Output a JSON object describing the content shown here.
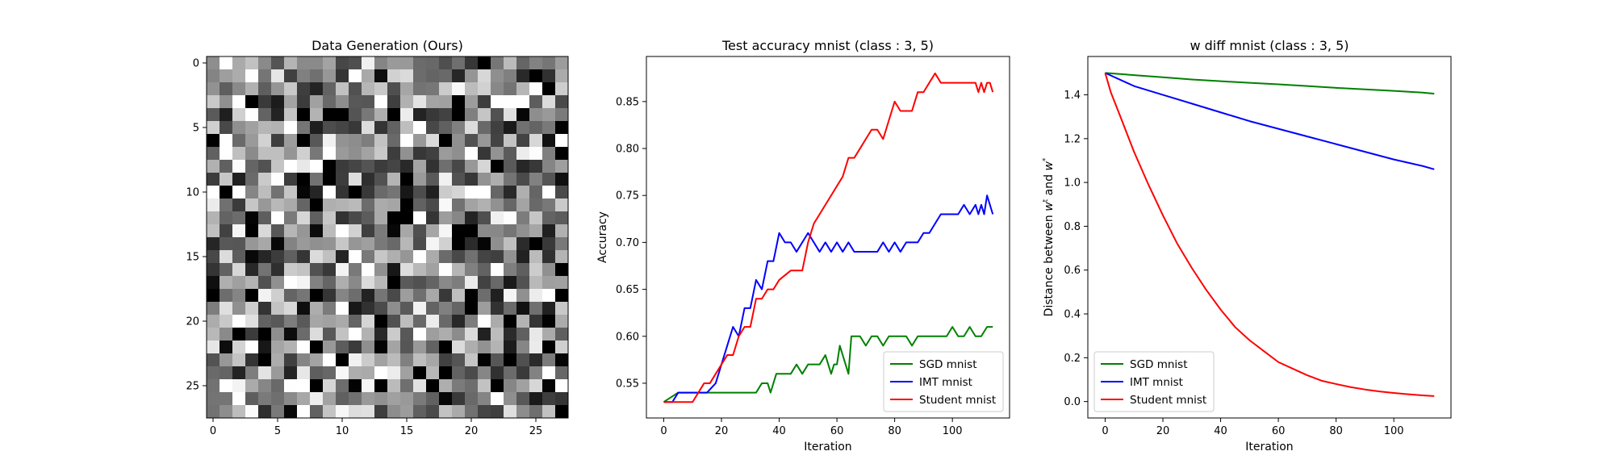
{
  "chart_data": [
    {
      "type": "heatmap",
      "title": "Data Generation (Ours)",
      "xlabel": "",
      "ylabel": "",
      "rows": 28,
      "cols": 28,
      "xticks": [
        "0",
        "5",
        "10",
        "15",
        "20",
        "25"
      ],
      "yticks": [
        "0",
        "5",
        "10",
        "15",
        "20",
        "25"
      ],
      "colormap": "grayscale",
      "value_range": [
        0,
        1
      ],
      "grid": false
    },
    {
      "type": "line",
      "title": "Test accuracy mnist (class : 3, 5)",
      "xlabel": "Iteration",
      "ylabel": "Accuracy",
      "xlim": [
        -6,
        119.8
      ],
      "ylim": [
        0.513,
        0.898
      ],
      "xticks": [
        "0",
        "20",
        "40",
        "60",
        "80",
        "100"
      ],
      "yticks": [
        "0.55",
        "0.60",
        "0.65",
        "0.70",
        "0.75",
        "0.80",
        "0.85"
      ],
      "legend": "lower-right",
      "series": [
        {
          "name": "SGD mnist",
          "color": "#008000",
          "x": [
            0,
            5,
            10,
            15,
            20,
            25,
            30,
            32,
            34,
            36,
            37,
            38,
            39,
            40,
            42,
            44,
            46,
            48,
            50,
            52,
            54,
            56,
            58,
            59,
            60,
            61,
            62,
            64,
            65,
            66,
            68,
            70,
            72,
            74,
            76,
            78,
            80,
            82,
            84,
            86,
            88,
            90,
            92,
            94,
            96,
            98,
            100,
            102,
            104,
            106,
            108,
            110,
            112,
            113,
            114
          ],
          "y": [
            0.53,
            0.54,
            0.54,
            0.54,
            0.54,
            0.54,
            0.54,
            0.54,
            0.55,
            0.55,
            0.54,
            0.55,
            0.56,
            0.56,
            0.56,
            0.56,
            0.57,
            0.56,
            0.57,
            0.57,
            0.57,
            0.58,
            0.56,
            0.57,
            0.57,
            0.59,
            0.58,
            0.56,
            0.6,
            0.6,
            0.6,
            0.59,
            0.6,
            0.6,
            0.59,
            0.6,
            0.6,
            0.6,
            0.6,
            0.59,
            0.6,
            0.6,
            0.6,
            0.6,
            0.6,
            0.6,
            0.61,
            0.6,
            0.6,
            0.61,
            0.6,
            0.6,
            0.61,
            0.61,
            0.61
          ]
        },
        {
          "name": "IMT mnist",
          "color": "#0000ff",
          "x": [
            0,
            3,
            5,
            10,
            15,
            18,
            20,
            22,
            24,
            26,
            28,
            30,
            32,
            34,
            36,
            38,
            40,
            42,
            44,
            46,
            48,
            50,
            52,
            54,
            56,
            58,
            60,
            62,
            64,
            66,
            68,
            70,
            72,
            74,
            76,
            78,
            80,
            82,
            84,
            86,
            88,
            90,
            92,
            94,
            96,
            98,
            100,
            102,
            104,
            106,
            108,
            109,
            110,
            111,
            112,
            113,
            114
          ],
          "y": [
            0.53,
            0.53,
            0.54,
            0.54,
            0.54,
            0.55,
            0.57,
            0.59,
            0.61,
            0.6,
            0.63,
            0.63,
            0.66,
            0.65,
            0.68,
            0.68,
            0.71,
            0.7,
            0.7,
            0.69,
            0.7,
            0.71,
            0.7,
            0.69,
            0.7,
            0.69,
            0.7,
            0.69,
            0.7,
            0.69,
            0.69,
            0.69,
            0.69,
            0.69,
            0.7,
            0.69,
            0.7,
            0.69,
            0.7,
            0.7,
            0.7,
            0.71,
            0.71,
            0.72,
            0.73,
            0.73,
            0.73,
            0.73,
            0.74,
            0.73,
            0.74,
            0.73,
            0.74,
            0.73,
            0.75,
            0.74,
            0.73
          ]
        },
        {
          "name": "Student mnist",
          "color": "#ff0000",
          "x": [
            0,
            5,
            10,
            12,
            14,
            16,
            18,
            20,
            22,
            24,
            26,
            28,
            30,
            32,
            34,
            36,
            38,
            40,
            44,
            48,
            50,
            52,
            54,
            56,
            58,
            60,
            62,
            64,
            66,
            68,
            70,
            72,
            74,
            76,
            78,
            80,
            82,
            84,
            86,
            88,
            90,
            92,
            94,
            96,
            98,
            100,
            102,
            104,
            106,
            108,
            109,
            110,
            111,
            112,
            113,
            114
          ],
          "y": [
            0.53,
            0.53,
            0.53,
            0.54,
            0.55,
            0.55,
            0.56,
            0.57,
            0.58,
            0.58,
            0.6,
            0.61,
            0.61,
            0.64,
            0.64,
            0.65,
            0.65,
            0.66,
            0.67,
            0.67,
            0.7,
            0.72,
            0.73,
            0.74,
            0.75,
            0.76,
            0.77,
            0.79,
            0.79,
            0.8,
            0.81,
            0.82,
            0.82,
            0.81,
            0.83,
            0.85,
            0.84,
            0.84,
            0.84,
            0.86,
            0.86,
            0.87,
            0.88,
            0.87,
            0.87,
            0.87,
            0.87,
            0.87,
            0.87,
            0.87,
            0.86,
            0.87,
            0.86,
            0.87,
            0.87,
            0.86
          ]
        }
      ]
    },
    {
      "type": "line",
      "title": "w diff mnist (class : 3, 5)",
      "xlabel": "Iteration",
      "ylabel": "Distance between w^t and w*",
      "ylabel_parts": {
        "pre": "Distance between ",
        "w1": "w",
        "sup1": "t",
        "mid": " and ",
        "w2": "w",
        "sup2": "*"
      },
      "xlim": [
        -6,
        119.8
      ],
      "ylim": [
        -0.075,
        1.575
      ],
      "xticks": [
        "0",
        "20",
        "40",
        "60",
        "80",
        "100"
      ],
      "yticks": [
        "0.0",
        "0.2",
        "0.4",
        "0.6",
        "0.8",
        "1.0",
        "1.2",
        "1.4"
      ],
      "legend": "lower-left",
      "series": [
        {
          "name": "SGD mnist",
          "color": "#008000",
          "x": [
            0,
            10,
            20,
            30,
            40,
            50,
            60,
            70,
            80,
            90,
            100,
            110,
            114
          ],
          "y": [
            1.5,
            1.49,
            1.48,
            1.47,
            1.462,
            1.455,
            1.448,
            1.44,
            1.432,
            1.425,
            1.418,
            1.41,
            1.405
          ]
        },
        {
          "name": "IMT mnist",
          "color": "#0000ff",
          "x": [
            0,
            10,
            20,
            30,
            40,
            50,
            60,
            70,
            80,
            90,
            100,
            110,
            114
          ],
          "y": [
            1.5,
            1.44,
            1.4,
            1.36,
            1.32,
            1.28,
            1.245,
            1.21,
            1.175,
            1.14,
            1.105,
            1.075,
            1.06
          ]
        },
        {
          "name": "Student mnist",
          "color": "#ff0000",
          "x": [
            0,
            2,
            5,
            10,
            15,
            20,
            25,
            30,
            35,
            40,
            45,
            50,
            55,
            60,
            65,
            70,
            75,
            80,
            85,
            90,
            95,
            100,
            105,
            110,
            114
          ],
          "y": [
            1.5,
            1.41,
            1.31,
            1.14,
            0.99,
            0.85,
            0.72,
            0.61,
            0.51,
            0.42,
            0.34,
            0.28,
            0.23,
            0.18,
            0.15,
            0.12,
            0.095,
            0.08,
            0.066,
            0.055,
            0.046,
            0.039,
            0.033,
            0.028,
            0.025
          ]
        }
      ]
    }
  ]
}
